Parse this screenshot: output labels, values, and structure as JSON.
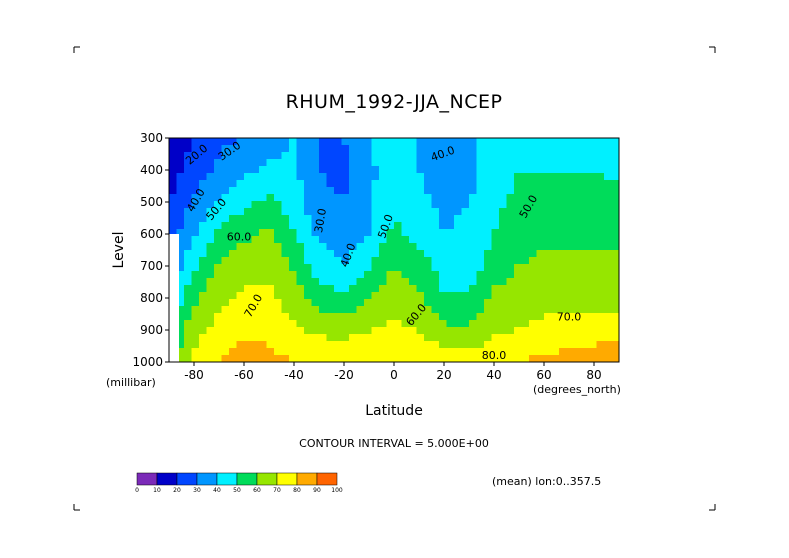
{
  "chart_data": {
    "type": "heatmap",
    "title": "RHUM_1992-JJA_NCEP",
    "xlabel": "Latitude",
    "x_units": "(degrees_north)",
    "ylabel": "Level",
    "y_units": "(millibar)",
    "xlim": [
      -90,
      90
    ],
    "ylim": [
      1000,
      300
    ],
    "x_ticks": [
      -80,
      -60,
      -40,
      -20,
      0,
      20,
      40,
      60,
      80
    ],
    "x_tick_labels": [
      "-80",
      "-60",
      "-40",
      "-20",
      "0",
      "20",
      "40",
      "60",
      "80"
    ],
    "y_ticks": [
      300,
      400,
      500,
      600,
      700,
      800,
      900,
      1000
    ],
    "y_tick_labels": [
      "300",
      "400",
      "500",
      "600",
      "700",
      "800",
      "900",
      "1000"
    ],
    "contour_interval_text": "CONTOUR INTERVAL = 5.000E+00",
    "mean_note": "(mean) lon:0..357.5",
    "contour_labels": [
      "20.0",
      "30.0",
      "40.0",
      "50.0",
      "60.0",
      "70.0",
      "30.0",
      "40.0",
      "50.0",
      "60.0",
      "40.0",
      "50.0",
      "70.0",
      "80.0"
    ],
    "colorbar": {
      "ticks": [
        "0",
        "10",
        "20",
        "30",
        "40",
        "50",
        "60",
        "70",
        "80",
        "90",
        "100"
      ],
      "colors": [
        "#7b2ab8",
        "#0000c8",
        "#0046ff",
        "#0096ff",
        "#00f0ff",
        "#00dc5a",
        "#96e600",
        "#ffff00",
        "#ffaa00",
        "#ff6400",
        "#ff0000"
      ]
    },
    "lats": [
      -90,
      -80,
      -70,
      -60,
      -50,
      -40,
      -30,
      -20,
      -10,
      0,
      10,
      20,
      30,
      40,
      50,
      60,
      70,
      80,
      90
    ],
    "levels": [
      300,
      400,
      500,
      600,
      700,
      800,
      900,
      1000
    ],
    "values": [
      [
        10,
        20,
        28,
        30,
        36,
        40,
        30,
        30,
        40,
        48,
        40,
        38,
        38,
        45,
        48,
        48,
        48,
        48,
        40
      ],
      [
        15,
        25,
        32,
        38,
        42,
        42,
        30,
        28,
        38,
        45,
        40,
        36,
        36,
        45,
        50,
        50,
        50,
        50,
        48
      ],
      [
        20,
        32,
        40,
        48,
        52,
        45,
        32,
        30,
        38,
        48,
        42,
        38,
        40,
        48,
        52,
        53,
        52,
        53,
        53
      ],
      [
        25,
        38,
        52,
        58,
        62,
        50,
        38,
        34,
        40,
        52,
        46,
        40,
        42,
        50,
        55,
        57,
        57,
        57,
        57
      ],
      [
        30,
        48,
        62,
        66,
        68,
        58,
        45,
        40,
        50,
        60,
        55,
        45,
        45,
        55,
        60,
        63,
        63,
        62,
        62
      ],
      [
        40,
        58,
        68,
        72,
        72,
        65,
        55,
        52,
        60,
        68,
        62,
        50,
        52,
        62,
        66,
        67,
        67,
        66,
        66
      ],
      [
        50,
        66,
        74,
        78,
        76,
        72,
        68,
        66,
        70,
        72,
        70,
        62,
        62,
        68,
        70,
        72,
        74,
        74,
        75
      ],
      [
        55,
        72,
        80,
        88,
        84,
        80,
        78,
        78,
        80,
        80,
        80,
        76,
        74,
        78,
        80,
        82,
        85,
        86,
        90
      ]
    ]
  }
}
